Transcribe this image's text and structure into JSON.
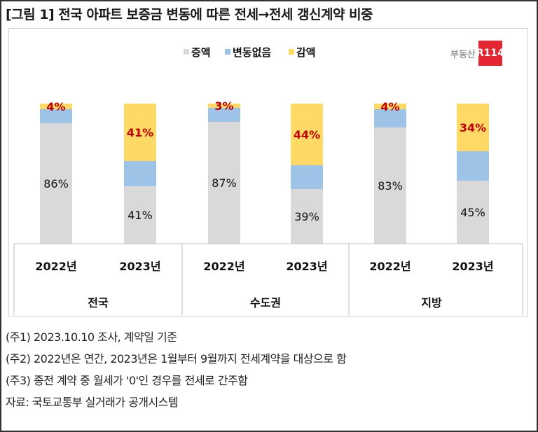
{
  "title": "[그림 1] 전국 아파트 보증금 변동에 따른 전세→전세 갱신계약 비중",
  "logo": {
    "text": "부동산",
    "badge": "R114"
  },
  "chart_data": {
    "type": "bar",
    "stacked": true,
    "percent": true,
    "groups": [
      "전국",
      "수도권",
      "지방"
    ],
    "categories": [
      "2022년",
      "2023년",
      "2022년",
      "2023년",
      "2022년",
      "2023년"
    ],
    "series": [
      {
        "name": "증액",
        "color": "#d9d9d9",
        "values": [
          86,
          41,
          87,
          39,
          83,
          45
        ]
      },
      {
        "name": "변동없음",
        "color": "#9dc3e6",
        "values": [
          10,
          18,
          10,
          17,
          13,
          21
        ]
      },
      {
        "name": "감액",
        "color": "#ffd966",
        "values": [
          4,
          41,
          3,
          44,
          4,
          34
        ]
      }
    ],
    "labels": {
      "증액": [
        "86%",
        "41%",
        "87%",
        "39%",
        "83%",
        "45%"
      ],
      "감액": [
        "4%",
        "41%",
        "3%",
        "44%",
        "4%",
        "34%"
      ]
    },
    "label_color_decrease": "#c00000",
    "ylim": [
      0,
      100
    ],
    "legend": "top-center",
    "grid": false
  },
  "notes": [
    "(주1) 2023.10.10 조사, 계약일 기준",
    "(주2) 2022년은 연간, 2023년은 1월부터 9월까지 전세계약을 대상으로 함",
    "(주3) 종전 계약 중 월세가 '0'인 경우를 전세로 간주함",
    "자료: 국토교통부 실거래가 공개시스템"
  ]
}
